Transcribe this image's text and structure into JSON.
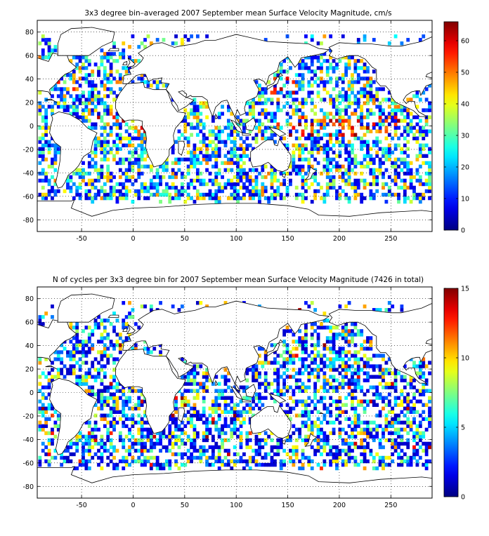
{
  "chart_data": [
    {
      "type": "heatmap",
      "title": "3x3 degree bin–averaged 2007 September mean Surface Velocity Magnitude, cm/s",
      "xlabel": "",
      "ylabel": "",
      "xlim": [
        -93,
        290
      ],
      "ylim": [
        -90,
        90
      ],
      "x_ticks": [
        -50,
        0,
        50,
        100,
        150,
        200,
        250
      ],
      "y_ticks": [
        80,
        60,
        40,
        20,
        0,
        -20,
        -40,
        -60,
        -80
      ],
      "grid": true,
      "grid_style": "dotted",
      "colorbar": {
        "min": 0,
        "max": 66,
        "ticks": [
          0,
          10,
          20,
          30,
          40,
          50,
          60
        ],
        "colormap": "jet",
        "position": "right"
      },
      "bin_size_deg": 3,
      "seed": 11
    },
    {
      "type": "heatmap",
      "title": "N of cycles per 3x3 degree bin for 2007 September mean Surface Velocity Magnitude (7426 in total)",
      "xlabel": "",
      "ylabel": "",
      "xlim": [
        -93,
        290
      ],
      "ylim": [
        -90,
        90
      ],
      "x_ticks": [
        -50,
        0,
        50,
        100,
        150,
        200,
        250
      ],
      "y_ticks": [
        80,
        60,
        40,
        20,
        0,
        -20,
        -40,
        -60,
        -80
      ],
      "grid": true,
      "grid_style": "dotted",
      "colorbar": {
        "min": 0,
        "max": 15,
        "ticks": [
          0,
          5,
          10,
          15
        ],
        "colormap": "jet",
        "position": "right"
      },
      "bin_size_deg": 3,
      "total_cycles": 7426,
      "seed": 29
    }
  ]
}
